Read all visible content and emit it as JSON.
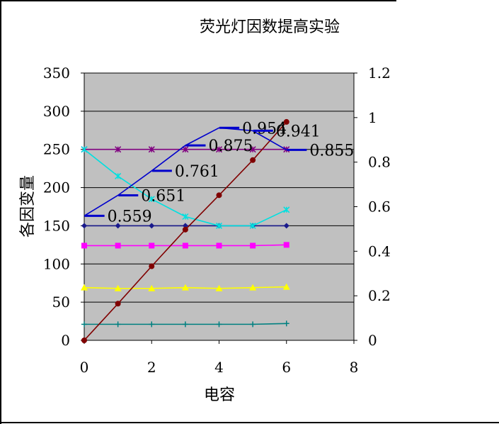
{
  "chart_data": {
    "type": "line",
    "title": "荧光灯因数提高实验",
    "xlabel": "电容",
    "ylabel": "各因变量",
    "xlim": [
      0,
      8
    ],
    "ylim_left": [
      0,
      350
    ],
    "ylim_right": [
      0,
      1.2
    ],
    "x_ticks": [
      "0",
      "2",
      "4",
      "6",
      "8"
    ],
    "y_ticks_left": [
      "0",
      "50",
      "100",
      "150",
      "200",
      "250",
      "300",
      "350"
    ],
    "y_ticks_right": [
      "0",
      "0.2",
      "0.4",
      "0.6",
      "0.8",
      "1",
      "1.2"
    ],
    "grid": true,
    "legend": "none",
    "series": [
      {
        "axis": "left",
        "color": "#1a1a8c",
        "marker": "diamond",
        "x": [
          0,
          1,
          2,
          3,
          4,
          5,
          6
        ],
        "values": [
          150,
          150,
          150,
          150,
          150,
          150,
          150
        ]
      },
      {
        "axis": "left",
        "color": "#ff00ff",
        "marker": "square",
        "x": [
          0,
          1,
          2,
          3,
          4,
          5,
          6
        ],
        "values": [
          124,
          124,
          124,
          124,
          124,
          124,
          125
        ]
      },
      {
        "axis": "left",
        "color": "#ffff00",
        "marker": "triangle",
        "x": [
          0,
          1,
          2,
          3,
          4,
          5,
          6
        ],
        "values": [
          69,
          68,
          68,
          69,
          68,
          69,
          70
        ]
      },
      {
        "axis": "left",
        "color": "#008080",
        "marker": "plus",
        "x": [
          0,
          1,
          2,
          3,
          4,
          5,
          6
        ],
        "values": [
          21,
          21,
          21,
          21,
          21,
          21,
          22
        ]
      },
      {
        "axis": "left",
        "color": "#800080",
        "marker": "star",
        "x": [
          0,
          1,
          2,
          3,
          4,
          5,
          6
        ],
        "values": [
          250,
          250,
          250,
          250,
          250,
          250,
          250
        ]
      },
      {
        "axis": "left",
        "color": "#00e0e0",
        "marker": "star",
        "x": [
          0,
          1,
          2,
          3,
          4,
          5,
          6
        ],
        "values": [
          250,
          215,
          185,
          162,
          150,
          150,
          171
        ]
      },
      {
        "axis": "left",
        "color": "#800000",
        "marker": "circle",
        "x": [
          0,
          1,
          2,
          3,
          4,
          5,
          6
        ],
        "values": [
          0,
          48,
          97,
          145,
          190,
          236,
          286
        ]
      },
      {
        "axis": "right",
        "color": "#0000cc",
        "marker": "none",
        "x": [
          0,
          1,
          2,
          3,
          4,
          5,
          6
        ],
        "values": [
          0.559,
          0.651,
          0.761,
          0.875,
          0.954,
          0.941,
          0.855
        ]
      }
    ],
    "data_labels": [
      {
        "x": 1,
        "value": 0.559,
        "text": "0.559"
      },
      {
        "x": 2,
        "value": 0.651,
        "text": "0.651"
      },
      {
        "x": 3,
        "value": 0.761,
        "text": "0.761"
      },
      {
        "x": 4,
        "value": 0.875,
        "text": "0.875"
      },
      {
        "x": 5,
        "value": 0.954,
        "text": "0.954"
      },
      {
        "x": 6,
        "value": 0.941,
        "text": "0.941"
      },
      {
        "x": 7,
        "value": 0.855,
        "text": "0.855"
      }
    ]
  }
}
